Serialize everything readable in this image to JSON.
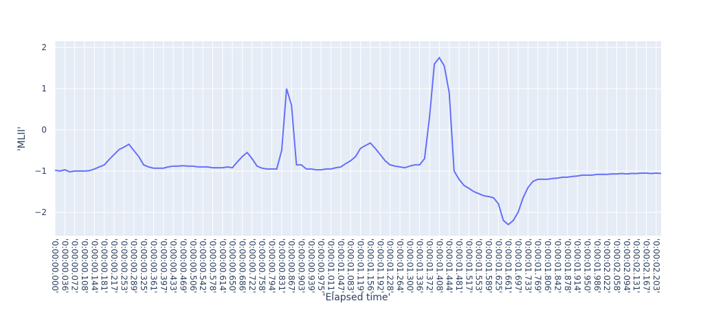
{
  "chart_data": {
    "type": "line",
    "x_label": "'Elapsed time'",
    "y_label": "'MLII'",
    "color": "#636efa",
    "background": "#e5ecf6",
    "grid": true,
    "ylim": [
      -2.57,
      2.15
    ],
    "yticks": [
      {
        "value": -2,
        "label": "−2"
      },
      {
        "value": -1,
        "label": "−1"
      },
      0,
      1,
      2
    ],
    "categories": [
      "'0:00:00.000'",
      null,
      "'0:00:00.036'",
      null,
      "'0:00:00.072'",
      null,
      "'0:00:00.108'",
      null,
      "'0:00:00.144'",
      null,
      "'0:00:00.181'",
      null,
      "'0:00:00.217'",
      null,
      "'0:00:00.253'",
      null,
      "'0:00:00.289'",
      null,
      "'0:00:00.325'",
      null,
      "'0:00:00.361'",
      null,
      "'0:00:00.397'",
      null,
      "'0:00:00.433'",
      null,
      "'0:00:00.469'",
      null,
      "'0:00:00.506'",
      null,
      "'0:00:00.542'",
      null,
      "'0:00:00.578'",
      null,
      "'0:00:00.614'",
      null,
      "'0:00:00.650'",
      null,
      "'0:00:00.686'",
      null,
      "'0:00:00.722'",
      null,
      "'0:00:00.758'",
      null,
      "'0:00:00.794'",
      null,
      "'0:00:00.831'",
      null,
      "'0:00:00.867'",
      null,
      "'0:00:00.903'",
      null,
      "'0:00:00.939'",
      null,
      "'0:00:00.975'",
      null,
      "'0:00:01.011'",
      null,
      "'0:00:01.047'",
      null,
      "'0:00:01.083'",
      null,
      "'0:00:01.119'",
      null,
      "'0:00:01.156'",
      null,
      "'0:00:01.192'",
      null,
      "'0:00:01.228'",
      null,
      "'0:00:01.264'",
      null,
      "'0:00:01.300'",
      null,
      "'0:00:01.336'",
      null,
      "'0:00:01.372'",
      null,
      "'0:00:01.408'",
      null,
      "'0:00:01.444'",
      null,
      "'0:00:01.481'",
      null,
      "'0:00:01.517'",
      null,
      "'0:00:01.553'",
      null,
      "'0:00:01.589'",
      null,
      "'0:00:01.625'",
      null,
      "'0:00:01.661'",
      null,
      "'0:00:01.697'",
      null,
      "'0:00:01.733'",
      null,
      "'0:00:01.769'",
      null,
      "'0:00:01.806'",
      null,
      "'0:00:01.842'",
      null,
      "'0:00:01.878'",
      null,
      "'0:00:01.914'",
      null,
      "'0:00:01.950'",
      null,
      "'0:00:01.986'",
      null,
      "'0:00:02.022'",
      null,
      "'0:00:02.058'",
      null,
      "'0:00:02.094'",
      null,
      "'0:00:02.131'",
      null,
      "'0:00:02.167'",
      null,
      "'0:00:02.203'",
      null
    ],
    "values": [
      -0.98,
      -1.0,
      -0.97,
      -1.02,
      -1.0,
      -1.0,
      -1.0,
      -0.99,
      -0.95,
      -0.9,
      -0.85,
      -0.72,
      -0.6,
      -0.48,
      -0.42,
      -0.35,
      -0.5,
      -0.65,
      -0.85,
      -0.9,
      -0.93,
      -0.93,
      -0.93,
      -0.9,
      -0.88,
      -0.88,
      -0.87,
      -0.88,
      -0.88,
      -0.9,
      -0.9,
      -0.9,
      -0.92,
      -0.92,
      -0.92,
      -0.9,
      -0.92,
      -0.78,
      -0.65,
      -0.55,
      -0.7,
      -0.88,
      -0.93,
      -0.95,
      -0.95,
      -0.95,
      -0.5,
      1.0,
      0.6,
      -0.85,
      -0.85,
      -0.95,
      -0.95,
      -0.97,
      -0.97,
      -0.95,
      -0.95,
      -0.92,
      -0.9,
      -0.82,
      -0.75,
      -0.65,
      -0.45,
      -0.38,
      -0.32,
      -0.45,
      -0.6,
      -0.75,
      -0.85,
      -0.88,
      -0.9,
      -0.92,
      -0.88,
      -0.85,
      -0.85,
      -0.7,
      0.3,
      1.6,
      1.75,
      1.55,
      0.9,
      -1.0,
      -1.2,
      -1.35,
      -1.42,
      -1.5,
      -1.55,
      -1.6,
      -1.62,
      -1.65,
      -1.8,
      -2.2,
      -2.3,
      -2.2,
      -2.0,
      -1.65,
      -1.4,
      -1.25,
      -1.2,
      -1.2,
      -1.2,
      -1.18,
      -1.17,
      -1.15,
      -1.15,
      -1.13,
      -1.12,
      -1.1,
      -1.1,
      -1.1,
      -1.08,
      -1.08,
      -1.08,
      -1.07,
      -1.07,
      -1.06,
      -1.07,
      -1.06,
      -1.06,
      -1.05,
      -1.05,
      -1.06,
      -1.05,
      -1.06
    ]
  }
}
